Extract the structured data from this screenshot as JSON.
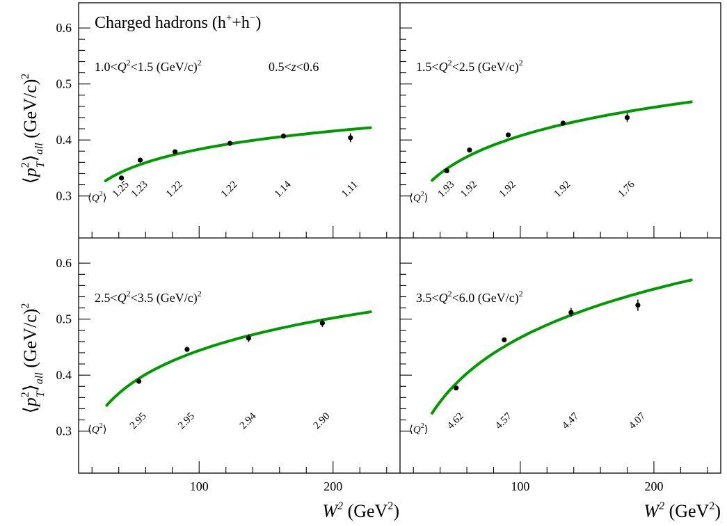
{
  "chart_data": {
    "type": "scatter",
    "title": "Charged hadrons (h⁺+h⁻)",
    "z_range_label": "0.5<z<0.6",
    "ylabel": "⟨p²T⟩all (GeV/c)²",
    "xlabel": "W² (GeV²)",
    "x_ticks": [
      "100",
      "200"
    ],
    "y_ticks": [
      "0.3",
      "0.4",
      "0.5",
      "0.6"
    ],
    "xlim": [
      10,
      250
    ],
    "ylim": [
      0.225,
      0.645
    ],
    "q2_row_label": "⟨Q²⟩",
    "curve_color": "#009900",
    "marker_color": "#000000",
    "panels": [
      {
        "label": "1.0<Q²<1.5 (GeV/c)²",
        "points": [
          {
            "x": 42,
            "y": 0.332,
            "err": 0.003
          },
          {
            "x": 56,
            "y": 0.364,
            "err": 0.003
          },
          {
            "x": 82,
            "y": 0.379,
            "err": 0.003
          },
          {
            "x": 123,
            "y": 0.394,
            "err": 0.003
          },
          {
            "x": 163,
            "y": 0.407,
            "err": 0.003
          },
          {
            "x": 213,
            "y": 0.404,
            "err": 0.008
          }
        ],
        "q2_values": [
          "1.25",
          "1.23",
          "1.22",
          "1.22",
          "1.14",
          "1.11"
        ],
        "curve": {
          "x_start": 30,
          "x_end": 228,
          "y_start": 0.327,
          "y_end": 0.422
        }
      },
      {
        "label": "1.5<Q²<2.5 (GeV/c)²",
        "points": [
          {
            "x": 45,
            "y": 0.345,
            "err": 0.003
          },
          {
            "x": 62,
            "y": 0.382,
            "err": 0.003
          },
          {
            "x": 91,
            "y": 0.409,
            "err": 0.003
          },
          {
            "x": 132,
            "y": 0.43,
            "err": 0.003
          },
          {
            "x": 180,
            "y": 0.44,
            "err": 0.008
          }
        ],
        "q2_values": [
          "1.93",
          "1.92",
          "1.92",
          "1.92",
          "1.76"
        ],
        "curve": {
          "x_start": 34,
          "x_end": 228,
          "y_start": 0.328,
          "y_end": 0.468
        }
      },
      {
        "label": "2.5<Q²<3.5 (GeV/c)²",
        "points": [
          {
            "x": 55,
            "y": 0.389,
            "err": 0.003
          },
          {
            "x": 91,
            "y": 0.446,
            "err": 0.003
          },
          {
            "x": 137,
            "y": 0.466,
            "err": 0.007
          },
          {
            "x": 192,
            "y": 0.493,
            "err": 0.007
          }
        ],
        "q2_values": [
          "2.95",
          "2.95",
          "2.94",
          "2.90"
        ],
        "curve": {
          "x_start": 31,
          "x_end": 228,
          "y_start": 0.346,
          "y_end": 0.513
        }
      },
      {
        "label": "3.5<Q²<6.0 (GeV/c)²",
        "points": [
          {
            "x": 52,
            "y": 0.377,
            "err": 0.003
          },
          {
            "x": 88,
            "y": 0.463,
            "err": 0.003
          },
          {
            "x": 138,
            "y": 0.512,
            "err": 0.008
          },
          {
            "x": 188,
            "y": 0.525,
            "err": 0.01
          }
        ],
        "q2_values": [
          "4.62",
          "4.57",
          "4.47",
          "4.07"
        ],
        "curve": {
          "x_start": 34,
          "x_end": 228,
          "y_start": 0.332,
          "y_end": 0.57
        }
      }
    ]
  }
}
